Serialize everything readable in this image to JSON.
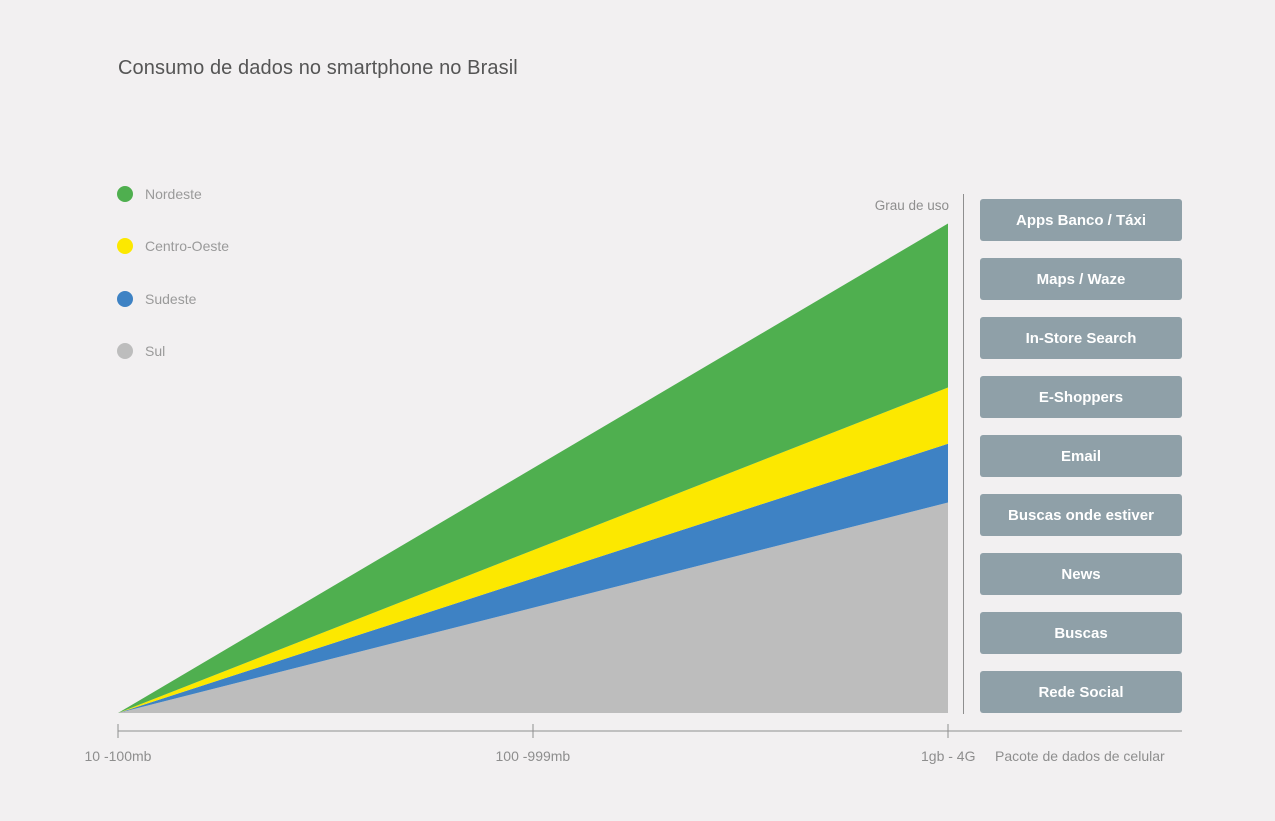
{
  "chart_data": {
    "type": "area",
    "title": "Consumo de dados no smartphone no Brasil",
    "xlabel": "Pacote de dados de celular",
    "ylabel": "Grau de  uso",
    "x": [
      "10 -100mb",
      "100 -999mb",
      "1gb - 4G"
    ],
    "stacked": true,
    "ylim": [
      0,
      100
    ],
    "series": [
      {
        "name": "Sul",
        "color": "#bdbdbd",
        "values": [
          0,
          21.5,
          43
        ]
      },
      {
        "name": "Sudeste",
        "color": "#3e82c4",
        "values": [
          0,
          6,
          12
        ]
      },
      {
        "name": "Centro-Oeste",
        "color": "#fce800",
        "values": [
          0,
          5.75,
          11.5
        ]
      },
      {
        "name": "Nordeste",
        "color": "#4faf4f",
        "values": [
          0,
          16.75,
          33.5
        ]
      }
    ],
    "legend_order": [
      "Nordeste",
      "Centro-Oeste",
      "Sudeste",
      "Sul"
    ],
    "legend_placement": "top-left",
    "grid": false,
    "categories_right": [
      "Apps Banco / Táxi",
      "Maps / Waze",
      "In-Store Search",
      "E-Shoppers",
      "Email",
      "Buscas onde estiver",
      "News",
      "Buscas",
      "Rede Social"
    ]
  }
}
